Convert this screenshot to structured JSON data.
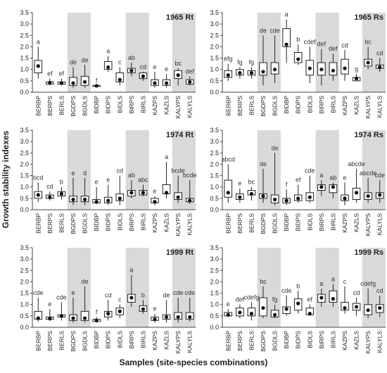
{
  "figure": {
    "ylabel": "Growth stability indexes",
    "xlabel": "Samples (site-species combinations)"
  },
  "colors": {
    "shade": "#d9d9d9",
    "box": "#222222",
    "median": "#111111",
    "letters": "#333333"
  },
  "chart_data": [
    {
      "type": "box",
      "title": "1965 Rt",
      "categories": [
        "BERBP",
        "BERPS",
        "BERLS",
        "BGDPS",
        "BGDLS",
        "BIDBP",
        "BIDPS",
        "BIDLS",
        "BIRPS",
        "BIRLS",
        "KAZPS",
        "KAZLS",
        "KALYPS",
        "KALYLS"
      ],
      "shaded": [
        3,
        4,
        8,
        9,
        12,
        13
      ],
      "ylim": [
        0,
        3.5
      ],
      "yticks": [
        0,
        0.5,
        1,
        1.5,
        2,
        2.5,
        3,
        3.5
      ],
      "series": [
        {
          "whisker_low": [
            0.6,
            0.3,
            0.3,
            0.2,
            0.2,
            0.25,
            0.9,
            0.3,
            0.7,
            0.5,
            0.2,
            0.2,
            0.3,
            0.3
          ],
          "q1": [
            0.85,
            0.35,
            0.35,
            0.3,
            0.3,
            0.25,
            1.0,
            0.45,
            0.85,
            0.6,
            0.3,
            0.3,
            0.6,
            0.35
          ],
          "median": [
            1.15,
            0.42,
            0.4,
            0.4,
            0.45,
            0.28,
            1.1,
            0.55,
            0.95,
            0.7,
            0.4,
            0.4,
            0.75,
            0.45
          ],
          "q3": [
            1.4,
            0.45,
            0.45,
            0.65,
            0.7,
            0.3,
            1.35,
            0.85,
            1.05,
            0.85,
            0.55,
            0.55,
            0.95,
            0.55
          ],
          "whisker_high": [
            2.0,
            0.6,
            0.6,
            1.1,
            1.2,
            0.3,
            1.6,
            1.1,
            1.3,
            0.9,
            0.9,
            0.8,
            1.05,
            0.7
          ],
          "letters": [
            "a",
            "ef",
            "ef",
            "de",
            "de",
            "f",
            "a",
            "c",
            "ab",
            "cd",
            "e",
            "e",
            "bc",
            "def"
          ]
        }
      ]
    },
    {
      "type": "box",
      "title": "1965 Rs",
      "categories": [
        "BERBP",
        "BERPS",
        "BERLS",
        "BGDPS",
        "BGDLS",
        "BIDBP",
        "BIDPS",
        "BIDLS",
        "BIRPS",
        "BIRLS",
        "KAZPS",
        "KAZLS",
        "KALYPS",
        "KALYLS"
      ],
      "shaded": [
        3,
        4,
        8,
        9,
        12,
        13
      ],
      "ylim": [
        0,
        3.5
      ],
      "yticks": [
        0,
        0.5,
        1,
        1.5,
        2,
        2.5,
        3,
        3.5
      ],
      "series": [
        {
          "whisker_low": [
            0.5,
            0.6,
            0.6,
            0.3,
            0.4,
            1.3,
            1.2,
            0.4,
            0.3,
            0.5,
            0.5,
            0.5,
            1.0,
            0.9
          ],
          "q1": [
            0.65,
            0.75,
            0.75,
            0.75,
            0.8,
            2.0,
            1.3,
            0.75,
            0.75,
            0.75,
            0.8,
            0.5,
            1.15,
            1.05
          ],
          "median": [
            0.75,
            0.85,
            0.85,
            0.9,
            1.0,
            2.1,
            1.45,
            1.05,
            1.0,
            0.95,
            1.05,
            0.6,
            1.3,
            1.1
          ],
          "q3": [
            0.95,
            1.0,
            0.95,
            1.3,
            1.3,
            2.8,
            1.75,
            1.4,
            1.3,
            1.3,
            1.45,
            0.65,
            1.45,
            1.2
          ],
          "whisker_high": [
            1.25,
            1.1,
            1.1,
            2.5,
            2.5,
            3.2,
            2.1,
            2.0,
            1.9,
            1.7,
            1.85,
            0.8,
            2.0,
            1.5
          ],
          "letters": [
            "efg",
            "fg",
            "fg",
            "de",
            "cde",
            "a",
            "b",
            "cdef",
            "def",
            "def",
            "cd",
            "g",
            "bc",
            "cd"
          ]
        }
      ]
    },
    {
      "type": "box",
      "title": "1974 Rt",
      "categories": [
        "BERBP",
        "BERPS",
        "BERLS",
        "BGDPS",
        "BGDLS",
        "BIDBP",
        "BIDPS",
        "BIDLS",
        "BIRPS",
        "BIRLS",
        "KAZPS",
        "KAZLS",
        "KALYPS",
        "KALYLS"
      ],
      "shaded": [
        3,
        4,
        8,
        9,
        12,
        13
      ],
      "ylim": [
        0,
        3.5
      ],
      "yticks": [
        0,
        0.5,
        1,
        1.5,
        2,
        2.5,
        3,
        3.5
      ],
      "series": [
        {
          "whisker_low": [
            0.35,
            0.4,
            0.45,
            0.2,
            0.2,
            0.25,
            0.2,
            0.2,
            0.5,
            0.6,
            0.2,
            0.5,
            0.3,
            0.25
          ],
          "q1": [
            0.5,
            0.5,
            0.6,
            0.35,
            0.35,
            0.3,
            0.3,
            0.4,
            0.6,
            0.65,
            0.3,
            0.7,
            0.45,
            0.35
          ],
          "median": [
            0.65,
            0.55,
            0.7,
            0.45,
            0.45,
            0.35,
            0.4,
            0.5,
            0.75,
            0.75,
            0.35,
            0.75,
            0.55,
            0.4
          ],
          "q3": [
            0.8,
            0.65,
            0.8,
            0.6,
            0.6,
            0.45,
            0.55,
            0.7,
            0.85,
            0.85,
            0.5,
            1.1,
            0.75,
            0.5
          ],
          "whisker_high": [
            1.2,
            0.8,
            1.0,
            1.4,
            1.4,
            1.0,
            1.1,
            1.5,
            1.3,
            1.1,
            0.6,
            2.1,
            1.5,
            1.3
          ],
          "letters": [
            "bcd",
            "cd",
            "b",
            "e",
            "d",
            "e",
            "e",
            "cd",
            "ab",
            "abc",
            "e",
            "a",
            "bcde",
            "bcde"
          ]
        }
      ]
    },
    {
      "type": "box",
      "title": "1974 Rs",
      "categories": [
        "BERBP",
        "BERPS",
        "BERLS",
        "BGDPS",
        "BGDLS",
        "BIDBP",
        "BIDPS",
        "BIDLS",
        "BIRPS",
        "BIRLS",
        "KAZPS",
        "KAZLS",
        "KALYPS",
        "KALYLS"
      ],
      "shaded": [
        3,
        4,
        8,
        9,
        12,
        13
      ],
      "ylim": [
        0,
        3.5
      ],
      "yticks": [
        0,
        0.5,
        1,
        1.5,
        2,
        2.5,
        3,
        3.5
      ],
      "series": [
        {
          "whisker_low": [
            0.3,
            0.3,
            0.4,
            0.3,
            0.2,
            0.2,
            0.3,
            0.3,
            0.6,
            0.5,
            0.2,
            0.3,
            0.3,
            0.3
          ],
          "q1": [
            0.55,
            0.45,
            0.65,
            0.5,
            0.3,
            0.3,
            0.4,
            0.4,
            0.85,
            0.75,
            0.4,
            0.45,
            0.45,
            0.5
          ],
          "median": [
            0.75,
            0.55,
            0.7,
            0.6,
            0.45,
            0.4,
            0.5,
            0.55,
            1.0,
            1.0,
            0.5,
            0.75,
            0.6,
            0.65
          ],
          "q3": [
            1.3,
            0.7,
            0.85,
            0.7,
            0.65,
            0.5,
            0.65,
            0.75,
            1.1,
            1.1,
            0.65,
            0.95,
            0.75,
            0.75
          ],
          "whisker_high": [
            2.0,
            0.95,
            1.0,
            1.8,
            2.5,
            0.9,
            1.1,
            1.5,
            1.3,
            1.2,
            1.2,
            1.8,
            1.4,
            1.3
          ],
          "letters": [
            "abcd",
            "e",
            "bc",
            "de",
            "de",
            "f",
            "ef",
            "cde",
            "a",
            "ab",
            "e",
            "abcde",
            "abcde",
            "cde"
          ]
        }
      ]
    },
    {
      "type": "box",
      "title": "1999 Rt",
      "categories": [
        "BERBP",
        "BERPS",
        "BERLS",
        "BGDPS",
        "BGDLS",
        "BIDBP",
        "BIDPS",
        "BIDLS",
        "BIRPS",
        "BIRLS",
        "KAZPS",
        "KAZLS",
        "KALYPS",
        "KALYLS"
      ],
      "shaded": [
        3,
        4,
        8,
        9,
        12,
        13
      ],
      "ylim": [
        0,
        3.5
      ],
      "yticks": [
        0,
        0.5,
        1,
        1.5,
        2,
        2.5,
        3,
        3.5
      ],
      "series": [
        {
          "whisker_low": [
            0.25,
            0.3,
            0.3,
            0.2,
            0.2,
            0.2,
            0.3,
            0.4,
            0.9,
            0.6,
            0.2,
            0.2,
            0.2,
            0.25
          ],
          "q1": [
            0.35,
            0.35,
            0.45,
            0.3,
            0.3,
            0.25,
            0.45,
            0.55,
            1.1,
            0.7,
            0.3,
            0.35,
            0.35,
            0.35
          ],
          "median": [
            0.4,
            0.38,
            0.5,
            0.4,
            0.4,
            0.3,
            0.6,
            0.7,
            1.3,
            0.8,
            0.35,
            0.45,
            0.45,
            0.45
          ],
          "q3": [
            0.7,
            0.45,
            0.55,
            0.55,
            0.7,
            0.35,
            0.7,
            0.85,
            1.45,
            0.95,
            0.45,
            0.55,
            0.65,
            0.65
          ],
          "whisker_high": [
            1.3,
            0.8,
            1.1,
            1.3,
            1.8,
            0.45,
            1.2,
            1.0,
            2.3,
            1.2,
            0.6,
            1.2,
            1.3,
            1.3
          ],
          "letters": [
            "cde",
            "e",
            "cde",
            "e",
            "de",
            "f",
            "cd",
            "c",
            "a",
            "b",
            "e",
            "de",
            "cde",
            "cde"
          ]
        }
      ]
    },
    {
      "type": "box",
      "title": "1999 Rs",
      "categories": [
        "BERBP",
        "BERPS",
        "BERLS",
        "BGDPS",
        "BGDLS",
        "BIDBP",
        "BIDPS",
        "BIDLS",
        "BIRPS",
        "BIRLS",
        "KAZPS",
        "KAZLS",
        "KALYPS",
        "KALYLS"
      ],
      "shaded": [
        3,
        4,
        8,
        9,
        12,
        13
      ],
      "ylim": [
        0,
        3.5
      ],
      "yticks": [
        0,
        0.5,
        1,
        1.5,
        2,
        2.5,
        3,
        3.5
      ],
      "series": [
        {
          "whisker_low": [
            0.45,
            0.4,
            0.3,
            0.4,
            0.4,
            0.5,
            0.6,
            0.5,
            0.9,
            0.9,
            0.6,
            0.5,
            0.4,
            0.45
          ],
          "q1": [
            0.5,
            0.5,
            0.5,
            0.5,
            0.45,
            0.6,
            0.75,
            0.55,
            1.1,
            1.1,
            0.75,
            0.75,
            0.55,
            0.65
          ],
          "median": [
            0.55,
            0.65,
            0.6,
            0.85,
            0.55,
            0.8,
            1.05,
            0.6,
            1.3,
            1.25,
            0.85,
            0.9,
            0.75,
            0.85
          ],
          "q3": [
            0.65,
            0.85,
            0.85,
            1.3,
            0.75,
            0.9,
            1.25,
            0.85,
            1.45,
            1.6,
            1.1,
            1.05,
            1.0,
            1.0
          ],
          "whisker_high": [
            0.8,
            1.0,
            1.1,
            1.8,
            1.0,
            1.4,
            1.6,
            1.0,
            1.7,
            1.9,
            1.8,
            1.3,
            1.7,
            1.4
          ],
          "letters": [
            "e",
            "def",
            "cdefg",
            "bc",
            "fg",
            "cde",
            "b",
            "ef",
            "a",
            "a",
            "c",
            "cd",
            "cdefg",
            "cd"
          ]
        }
      ]
    }
  ]
}
